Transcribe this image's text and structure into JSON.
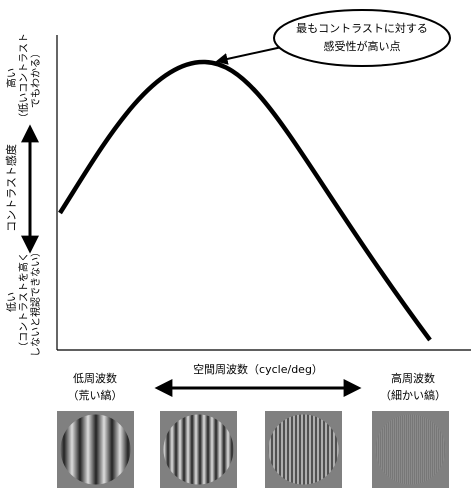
{
  "callout": {
    "lines": [
      "最もコントラストに対する",
      "感受性が高い点"
    ]
  },
  "y_axis": {
    "high": {
      "lines": [
        "高い",
        "（低いコントラスト",
        "でもわかる）"
      ]
    },
    "label": "コントラスト感度",
    "low": {
      "lines": [
        "低い",
        "（コントラストを高く",
        "しないと視認できない）"
      ]
    }
  },
  "x_axis": {
    "label": "空間周波数（cycle/deg）",
    "low": {
      "lines": [
        "低周波数",
        "（荒い縞）"
      ]
    },
    "high": {
      "lines": [
        "高周波数",
        "（細かい縞）"
      ]
    }
  }
}
